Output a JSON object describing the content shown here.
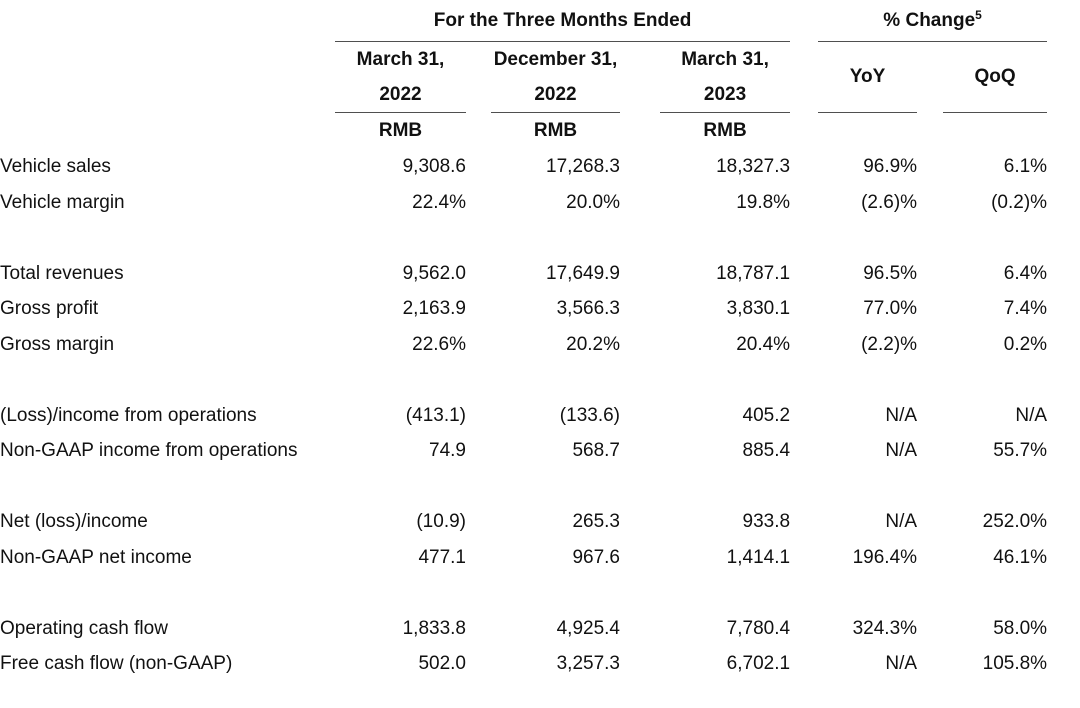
{
  "colors": {
    "background": "#ffffff",
    "text": "#111111",
    "rule": "#4f4f4f"
  },
  "table": {
    "group_headers": [
      {
        "label": "For the Three Months Ended"
      },
      {
        "label": "% Change",
        "superscript": "5"
      }
    ],
    "period_columns": [
      {
        "line1": "March 31,",
        "line2": "2022",
        "unit": "RMB"
      },
      {
        "line1": "December 31,",
        "line2": "2022",
        "unit": "RMB"
      },
      {
        "line1": "March 31,",
        "line2": "2023",
        "unit": "RMB"
      }
    ],
    "change_columns": [
      {
        "label": "YoY"
      },
      {
        "label": "QoQ"
      }
    ],
    "rows": [
      {
        "label": "Vehicle sales",
        "values": [
          "9,308.6",
          "17,268.3",
          "18,327.3",
          "96.9%",
          "6.1%"
        ]
      },
      {
        "label": "Vehicle margin",
        "values": [
          "22.4%",
          "20.0%",
          "19.8%",
          "(2.6)%",
          "(0.2)%"
        ]
      },
      {
        "spacer": true
      },
      {
        "label": "Total revenues",
        "values": [
          "9,562.0",
          "17,649.9",
          "18,787.1",
          "96.5%",
          "6.4%"
        ]
      },
      {
        "label": "Gross profit",
        "values": [
          "2,163.9",
          "3,566.3",
          "3,830.1",
          "77.0%",
          "7.4%"
        ]
      },
      {
        "label": "Gross margin",
        "values": [
          "22.6%",
          "20.2%",
          "20.4%",
          "(2.2)%",
          "0.2%"
        ]
      },
      {
        "spacer": true
      },
      {
        "label": "(Loss)/income from operations",
        "values": [
          "(413.1)",
          "(133.6)",
          "405.2",
          "N/A",
          "N/A"
        ]
      },
      {
        "label": "Non-GAAP income from operations",
        "values": [
          "74.9",
          "568.7",
          "885.4",
          "N/A",
          "55.7%"
        ]
      },
      {
        "spacer": true
      },
      {
        "label": "Net (loss)/income",
        "values": [
          "(10.9)",
          "265.3",
          "933.8",
          "N/A",
          "252.0%"
        ]
      },
      {
        "label": "Non-GAAP net income",
        "values": [
          "477.1",
          "967.6",
          "1,414.1",
          "196.4%",
          "46.1%"
        ]
      },
      {
        "spacer": true
      },
      {
        "label": "Operating cash flow",
        "values": [
          "1,833.8",
          "4,925.4",
          "7,780.4",
          "324.3%",
          "58.0%"
        ]
      },
      {
        "label": "Free cash flow (non-GAAP)",
        "values": [
          "502.0",
          "3,257.3",
          "6,702.1",
          "N/A",
          "105.8%"
        ]
      }
    ]
  }
}
